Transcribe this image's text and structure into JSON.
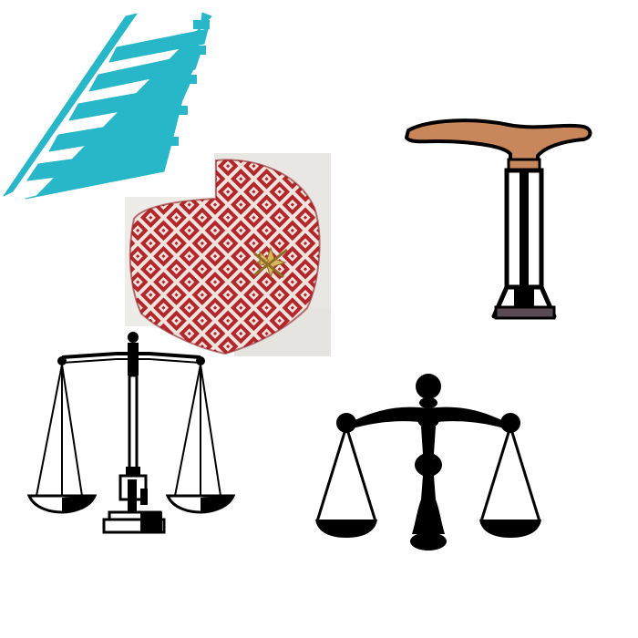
{
  "scene": {
    "background": "#ffffff",
    "items": [
      {
        "key": "railroad",
        "icon": "railroad-track-icon",
        "color": "#27b7c8"
      },
      {
        "key": "cap",
        "icon": "patterned-cap-icon",
        "color": "#b3262c"
      },
      {
        "key": "cane",
        "icon": "walking-cane-icon",
        "color": "#c8875a"
      },
      {
        "key": "scale_left",
        "icon": "balance-scale-outline-icon",
        "color": "#000000"
      },
      {
        "key": "scale_right",
        "icon": "balance-scale-silhouette-icon",
        "color": "#000000"
      }
    ]
  }
}
